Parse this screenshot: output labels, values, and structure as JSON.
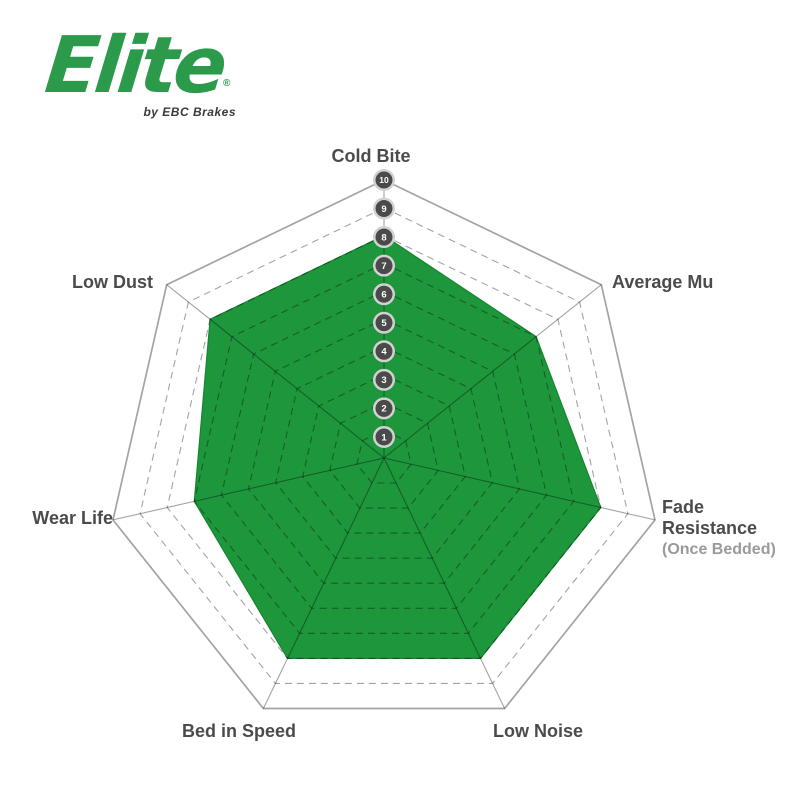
{
  "logo": {
    "brand": "Elite",
    "registered": "®",
    "tagline": "by EBC Brakes"
  },
  "chart_data": {
    "type": "radar",
    "categories": [
      "Cold Bite",
      "Average Mu",
      "Fade Resistance (Once Bedded)",
      "Low Noise",
      "Bed in Speed",
      "Wear Life",
      "Low Dust"
    ],
    "values": [
      8,
      7,
      8,
      8,
      8,
      7,
      8
    ],
    "scale": {
      "min": 0,
      "max": 10,
      "ticks": [
        1,
        2,
        3,
        4,
        5,
        6,
        7,
        8,
        9,
        10
      ]
    },
    "grid": {
      "shape": "heptagon",
      "rings": 10,
      "inner_ring_style": "dashed",
      "outer_ring_style": "solid",
      "spokes": "solid"
    },
    "legend": "none",
    "axis_labels": {
      "cold_bite": "Cold Bite",
      "average_mu": "Average Mu",
      "fade_line1": "Fade",
      "fade_line2": "Resistance",
      "fade_line3": "(Once Bedded)",
      "low_noise": "Low Noise",
      "bed_in_speed": "Bed in Speed",
      "wear_life": "Wear Life",
      "low_dust": "Low Dust"
    },
    "colors": {
      "fill": "#1e963c",
      "fill_edge": "#15862f",
      "grid_line": "rgba(0,0,0,0.36)",
      "badge_fill": "#4a4a4a",
      "badge_halo": "#d2d2d2",
      "badge_text": "#ffffff",
      "label": "#4b4b4b",
      "label_muted": "#9a9a9a",
      "brand_green": "#2b9a4a",
      "tagline_color": "#3a3a3a"
    }
  }
}
